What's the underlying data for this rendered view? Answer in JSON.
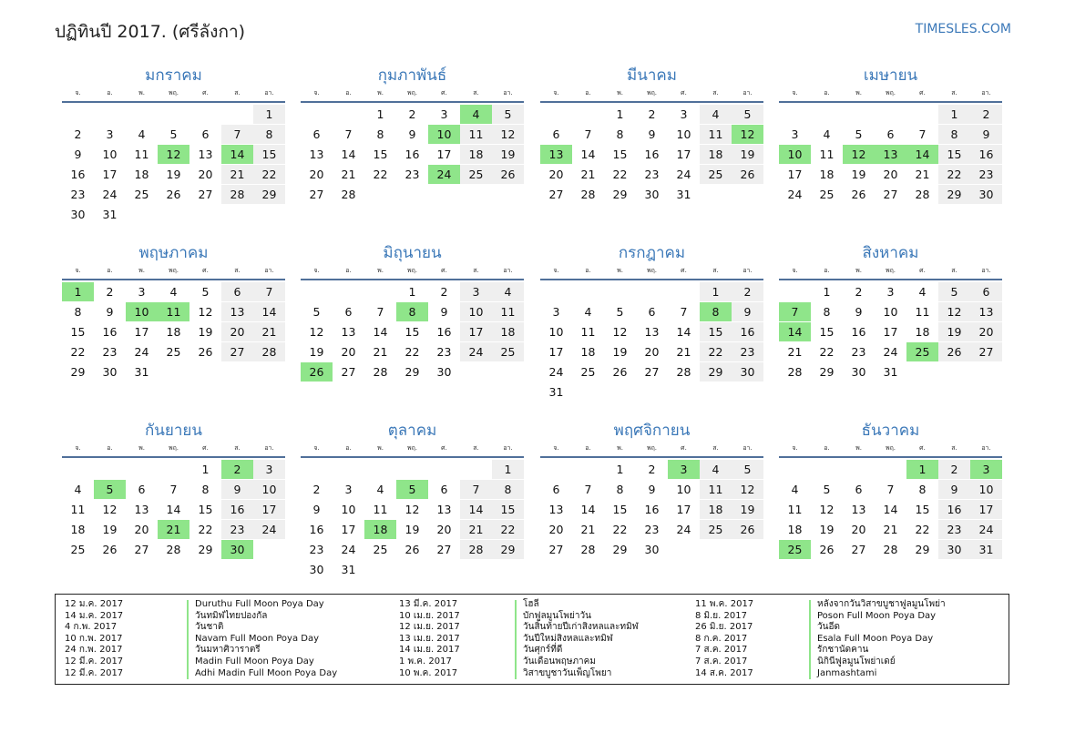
{
  "header": {
    "title": "ปฏิทินปี 2017. (ศรีลังกา)",
    "brand": "TIMESLES.COM"
  },
  "weekdays": [
    "จ.",
    "อ.",
    "พ.",
    "พฤ.",
    "ศ.",
    "ส.",
    "อา."
  ],
  "months": [
    {
      "name": "มกราคม",
      "weeks": [
        [
          "",
          "",
          "",
          "",
          "",
          "",
          "1"
        ],
        [
          "2",
          "3",
          "4",
          "5",
          "6",
          "7",
          "8"
        ],
        [
          "9",
          "10",
          "11",
          "12",
          "13",
          "14",
          "15"
        ],
        [
          "16",
          "17",
          "18",
          "19",
          "20",
          "21",
          "22"
        ],
        [
          "23",
          "24",
          "25",
          "26",
          "27",
          "28",
          "29"
        ],
        [
          "30",
          "31",
          "",
          "",
          "",
          "",
          ""
        ]
      ],
      "holidays": [
        "12",
        "14"
      ]
    },
    {
      "name": "กุมภาพันธ์",
      "weeks": [
        [
          "",
          "",
          "1",
          "2",
          "3",
          "4",
          "5"
        ],
        [
          "6",
          "7",
          "8",
          "9",
          "10",
          "11",
          "12"
        ],
        [
          "13",
          "14",
          "15",
          "16",
          "17",
          "18",
          "19"
        ],
        [
          "20",
          "21",
          "22",
          "23",
          "24",
          "25",
          "26"
        ],
        [
          "27",
          "28",
          "",
          "",
          "",
          "",
          ""
        ]
      ],
      "holidays": [
        "4",
        "10",
        "24"
      ]
    },
    {
      "name": "มีนาคม",
      "weeks": [
        [
          "",
          "",
          "1",
          "2",
          "3",
          "4",
          "5"
        ],
        [
          "6",
          "7",
          "8",
          "9",
          "10",
          "11",
          "12"
        ],
        [
          "13",
          "14",
          "15",
          "16",
          "17",
          "18",
          "19"
        ],
        [
          "20",
          "21",
          "22",
          "23",
          "24",
          "25",
          "26"
        ],
        [
          "27",
          "28",
          "29",
          "30",
          "31",
          "",
          ""
        ]
      ],
      "holidays": [
        "12",
        "13"
      ]
    },
    {
      "name": "เมษายน",
      "weeks": [
        [
          "",
          "",
          "",
          "",
          "",
          "1",
          "2"
        ],
        [
          "3",
          "4",
          "5",
          "6",
          "7",
          "8",
          "9"
        ],
        [
          "10",
          "11",
          "12",
          "13",
          "14",
          "15",
          "16"
        ],
        [
          "17",
          "18",
          "19",
          "20",
          "21",
          "22",
          "23"
        ],
        [
          "24",
          "25",
          "26",
          "27",
          "28",
          "29",
          "30"
        ]
      ],
      "holidays": [
        "10",
        "12",
        "13",
        "14"
      ]
    },
    {
      "name": "พฤษภาคม",
      "weeks": [
        [
          "1",
          "2",
          "3",
          "4",
          "5",
          "6",
          "7"
        ],
        [
          "8",
          "9",
          "10",
          "11",
          "12",
          "13",
          "14"
        ],
        [
          "15",
          "16",
          "17",
          "18",
          "19",
          "20",
          "21"
        ],
        [
          "22",
          "23",
          "24",
          "25",
          "26",
          "27",
          "28"
        ],
        [
          "29",
          "30",
          "31",
          "",
          "",
          "",
          ""
        ]
      ],
      "holidays": [
        "1",
        "10",
        "11"
      ]
    },
    {
      "name": "มิถุนายน",
      "weeks": [
        [
          "",
          "",
          "",
          "1",
          "2",
          "3",
          "4"
        ],
        [
          "5",
          "6",
          "7",
          "8",
          "9",
          "10",
          "11"
        ],
        [
          "12",
          "13",
          "14",
          "15",
          "16",
          "17",
          "18"
        ],
        [
          "19",
          "20",
          "21",
          "22",
          "23",
          "24",
          "25"
        ],
        [
          "26",
          "27",
          "28",
          "29",
          "30",
          "",
          ""
        ]
      ],
      "holidays": [
        "8",
        "26"
      ]
    },
    {
      "name": "กรกฎาคม",
      "weeks": [
        [
          "",
          "",
          "",
          "",
          "",
          "1",
          "2"
        ],
        [
          "3",
          "4",
          "5",
          "6",
          "7",
          "8",
          "9"
        ],
        [
          "10",
          "11",
          "12",
          "13",
          "14",
          "15",
          "16"
        ],
        [
          "17",
          "18",
          "19",
          "20",
          "21",
          "22",
          "23"
        ],
        [
          "24",
          "25",
          "26",
          "27",
          "28",
          "29",
          "30"
        ],
        [
          "31",
          "",
          "",
          "",
          "",
          "",
          ""
        ]
      ],
      "holidays": [
        "8"
      ]
    },
    {
      "name": "สิงหาคม",
      "weeks": [
        [
          "",
          "1",
          "2",
          "3",
          "4",
          "5",
          "6"
        ],
        [
          "7",
          "8",
          "9",
          "10",
          "11",
          "12",
          "13"
        ],
        [
          "14",
          "15",
          "16",
          "17",
          "18",
          "19",
          "20"
        ],
        [
          "21",
          "22",
          "23",
          "24",
          "25",
          "26",
          "27"
        ],
        [
          "28",
          "29",
          "30",
          "31",
          "",
          "",
          ""
        ]
      ],
      "holidays": [
        "7",
        "14",
        "25"
      ]
    },
    {
      "name": "กันยายน",
      "weeks": [
        [
          "",
          "",
          "",
          "",
          "1",
          "2",
          "3"
        ],
        [
          "4",
          "5",
          "6",
          "7",
          "8",
          "9",
          "10"
        ],
        [
          "11",
          "12",
          "13",
          "14",
          "15",
          "16",
          "17"
        ],
        [
          "18",
          "19",
          "20",
          "21",
          "22",
          "23",
          "24"
        ],
        [
          "25",
          "26",
          "27",
          "28",
          "29",
          "30",
          ""
        ]
      ],
      "holidays": [
        "2",
        "5",
        "21",
        "30"
      ]
    },
    {
      "name": "ตุลาคม",
      "weeks": [
        [
          "",
          "",
          "",
          "",
          "",
          "",
          "1"
        ],
        [
          "2",
          "3",
          "4",
          "5",
          "6",
          "7",
          "8"
        ],
        [
          "9",
          "10",
          "11",
          "12",
          "13",
          "14",
          "15"
        ],
        [
          "16",
          "17",
          "18",
          "19",
          "20",
          "21",
          "22"
        ],
        [
          "23",
          "24",
          "25",
          "26",
          "27",
          "28",
          "29"
        ],
        [
          "30",
          "31",
          "",
          "",
          "",
          "",
          ""
        ]
      ],
      "holidays": [
        "5",
        "18"
      ]
    },
    {
      "name": "พฤศจิกายน",
      "weeks": [
        [
          "",
          "",
          "1",
          "2",
          "3",
          "4",
          "5"
        ],
        [
          "6",
          "7",
          "8",
          "9",
          "10",
          "11",
          "12"
        ],
        [
          "13",
          "14",
          "15",
          "16",
          "17",
          "18",
          "19"
        ],
        [
          "20",
          "21",
          "22",
          "23",
          "24",
          "25",
          "26"
        ],
        [
          "27",
          "28",
          "29",
          "30",
          "",
          "",
          ""
        ]
      ],
      "holidays": [
        "3"
      ]
    },
    {
      "name": "ธันวาคม",
      "weeks": [
        [
          "",
          "",
          "",
          "",
          "1",
          "2",
          "3"
        ],
        [
          "4",
          "5",
          "6",
          "7",
          "8",
          "9",
          "10"
        ],
        [
          "11",
          "12",
          "13",
          "14",
          "15",
          "16",
          "17"
        ],
        [
          "18",
          "19",
          "20",
          "21",
          "22",
          "23",
          "24"
        ],
        [
          "25",
          "26",
          "27",
          "28",
          "29",
          "30",
          "31"
        ]
      ],
      "holidays": [
        "1",
        "3",
        "25"
      ]
    }
  ],
  "holiday_list": [
    [
      {
        "date": "12 ม.ค. 2017",
        "name": "Duruthu Full Moon Poya Day"
      },
      {
        "date": "14 ม.ค. 2017",
        "name": "วันทมิฬไทยปองกัล"
      },
      {
        "date": "4 ก.พ. 2017",
        "name": "วันชาติ"
      },
      {
        "date": "10 ก.พ. 2017",
        "name": "Navam Full Moon Poya Day"
      },
      {
        "date": "24 ก.พ. 2017",
        "name": "วันมหาศิวาราตรี"
      },
      {
        "date": "12 มี.ค. 2017",
        "name": "Madin Full Moon Poya Day"
      },
      {
        "date": "12 มี.ค. 2017",
        "name": "Adhi Madin Full Moon Poya Day"
      }
    ],
    [
      {
        "date": "13 มี.ค. 2017",
        "name": "โฮลี"
      },
      {
        "date": "10 เม.ย. 2017",
        "name": "บักฟูลมูนโพย่าวัน"
      },
      {
        "date": "12 เม.ย. 2017",
        "name": "วันสิ้นท้ายปีเก่าสิงหลและทมิฬ"
      },
      {
        "date": "13 เม.ย. 2017",
        "name": "วันปีใหม่สิงหลและทมิฬ"
      },
      {
        "date": "14 เม.ย. 2017",
        "name": "วันศุกร์ที่ดี"
      },
      {
        "date": "1 พ.ค. 2017",
        "name": "วันเดือนพฤษภาคม"
      },
      {
        "date": "10 พ.ค. 2017",
        "name": "วิสาขบูชาวันเพ็ญโพยา"
      }
    ],
    [
      {
        "date": "11 พ.ค. 2017",
        "name": "หลังจากวันวิสาขบูชาฟูลมูนโพย่า"
      },
      {
        "date": "8 มิ.ย. 2017",
        "name": "Poson Full Moon Poya Day"
      },
      {
        "date": "26 มิ.ย. 2017",
        "name": "วันอีด"
      },
      {
        "date": "8 ก.ค. 2017",
        "name": "Esala Full Moon Poya Day"
      },
      {
        "date": "7 ส.ค. 2017",
        "name": "รักชานัดคาน"
      },
      {
        "date": "7 ส.ค. 2017",
        "name": "นิกินีฟูลมูนโพย่าเดย์"
      },
      {
        "date": "14 ส.ค. 2017",
        "name": "Janmashtami"
      }
    ]
  ],
  "colors": {
    "accent": "#3b78b8",
    "holiday": "#8fe58a",
    "weekend": "#efefef",
    "rule": "#50709a"
  }
}
